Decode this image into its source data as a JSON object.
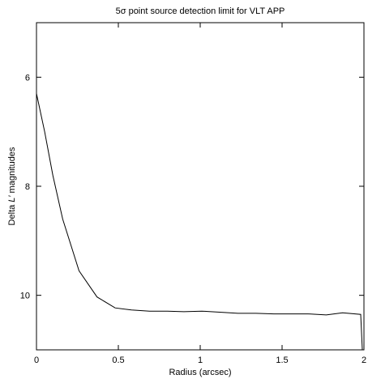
{
  "chart_data": {
    "type": "line",
    "title": "5σ point source detection limit for VLT APP",
    "xlabel": "Radius (arcsec)",
    "ylabel_prefix": "Delta ",
    "ylabel_italic": "L′",
    "ylabel_suffix": " magnitudes",
    "xlim": [
      0,
      2
    ],
    "ylim": [
      11.0,
      5.0
    ],
    "y_inverted": true,
    "grid": false,
    "x_ticks": [
      {
        "value": 0,
        "label": "0"
      },
      {
        "value": 0.5,
        "label": "0.5"
      },
      {
        "value": 1,
        "label": "1"
      },
      {
        "value": 1.5,
        "label": "1.5"
      },
      {
        "value": 2,
        "label": "2"
      }
    ],
    "y_ticks": [
      {
        "value": 6,
        "label": "6"
      },
      {
        "value": 8,
        "label": "8"
      },
      {
        "value": 10,
        "label": "10"
      }
    ],
    "series": [
      {
        "x": [
          0.0,
          0.05,
          0.1,
          0.16,
          0.26,
          0.37,
          0.48,
          0.58,
          0.69,
          0.8,
          0.9,
          1.01,
          1.12,
          1.23,
          1.34,
          1.45,
          1.55,
          1.66,
          1.77,
          1.87,
          1.98,
          1.99
        ],
        "y": [
          6.3,
          7.0,
          7.8,
          8.6,
          9.55,
          10.03,
          10.23,
          10.27,
          10.29,
          10.29,
          10.3,
          10.29,
          10.31,
          10.33,
          10.33,
          10.34,
          10.34,
          10.34,
          10.36,
          10.32,
          10.35,
          11.0
        ]
      }
    ]
  }
}
